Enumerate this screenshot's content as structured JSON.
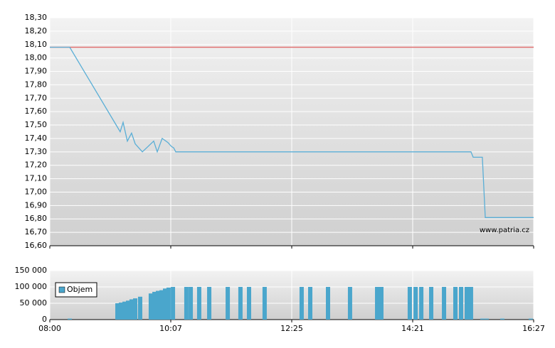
{
  "chart_data": [
    {
      "type": "line",
      "x": [
        0,
        0.165,
        0.582,
        0.606,
        0.641,
        0.676,
        0.706,
        0.765,
        0.859,
        0.888,
        0.929,
        0.976,
        1.006,
        1.024,
        1.041,
        3.482,
        3.5,
        3.576,
        3.6,
        4
      ],
      "values": [
        18.08,
        18.08,
        17.45,
        17.52,
        17.38,
        17.44,
        17.36,
        17.3,
        17.38,
        17.3,
        17.4,
        17.37,
        17.34,
        17.33,
        17.3,
        17.3,
        17.26,
        17.26,
        16.81,
        16.81
      ],
      "color": "#5aaed6",
      "reference_line": {
        "value": 18.08,
        "color": "#e07070"
      },
      "xlim": [
        0,
        4
      ],
      "xticks": [
        0,
        1,
        2,
        3,
        4
      ],
      "ylim": [
        16.6,
        18.3
      ],
      "yticks": [
        {
          "value": 16.6,
          "label": "16,60"
        },
        {
          "value": 16.7,
          "label": "16,70"
        },
        {
          "value": 16.8,
          "label": "16,80"
        },
        {
          "value": 16.9,
          "label": "16,90"
        },
        {
          "value": 17.0,
          "label": "17,00"
        },
        {
          "value": 17.1,
          "label": "17,10"
        },
        {
          "value": 17.2,
          "label": "17,20"
        },
        {
          "value": 17.3,
          "label": "17,30"
        },
        {
          "value": 17.4,
          "label": "17,40"
        },
        {
          "value": 17.5,
          "label": "17,50"
        },
        {
          "value": 17.6,
          "label": "17,60"
        },
        {
          "value": 17.7,
          "label": "17,70"
        },
        {
          "value": 17.8,
          "label": "17,80"
        },
        {
          "value": 17.9,
          "label": "17,90"
        },
        {
          "value": 18.0,
          "label": "18,00"
        },
        {
          "value": 18.1,
          "label": "18,10"
        },
        {
          "value": 18.2,
          "label": "18,20"
        },
        {
          "value": 18.3,
          "label": "18,30"
        }
      ],
      "grid": true,
      "annotation": "www.patria.cz"
    },
    {
      "type": "bar",
      "x": [
        0.165,
        0.559,
        0.588,
        0.618,
        0.647,
        0.676,
        0.706,
        0.747,
        0.835,
        0.865,
        0.894,
        0.924,
        0.953,
        0.982,
        1.018,
        1.129,
        1.165,
        1.235,
        1.318,
        1.471,
        1.576,
        1.647,
        1.776,
        2.082,
        2.153,
        2.3,
        2.482,
        2.706,
        2.741,
        2.976,
        3.024,
        3.071,
        3.153,
        3.259,
        3.353,
        3.4,
        3.447,
        3.482,
        3.576,
        3.612,
        3.741,
        3.976
      ],
      "series": [
        {
          "name": "Objem",
          "color": "#4aa6cc",
          "values": [
            3000,
            50000,
            52000,
            55000,
            58000,
            62000,
            65000,
            70000,
            80000,
            85000,
            88000,
            90000,
            95000,
            98000,
            100000,
            100000,
            100000,
            100000,
            100000,
            100000,
            100000,
            100000,
            100000,
            100000,
            100000,
            100000,
            100000,
            100000,
            100000,
            100000,
            100000,
            100000,
            100000,
            100000,
            100000,
            100000,
            100000,
            100000,
            3000,
            3000,
            3000,
            3000
          ]
        }
      ],
      "xlim": [
        0,
        4
      ],
      "xticks": [
        {
          "value": 0,
          "label": "08:00"
        },
        {
          "value": 1,
          "label": "10:07"
        },
        {
          "value": 2,
          "label": "12:25"
        },
        {
          "value": 3,
          "label": "14:21"
        },
        {
          "value": 4,
          "label": "16:27"
        }
      ],
      "ylim": [
        0,
        150000
      ],
      "yticks": [
        0,
        {
          "value": 50000,
          "label": "50 000"
        },
        {
          "value": 100000,
          "label": "100 000"
        },
        {
          "value": 150000,
          "label": "150 000"
        }
      ],
      "grid": true,
      "legend": "upper-left"
    }
  ]
}
